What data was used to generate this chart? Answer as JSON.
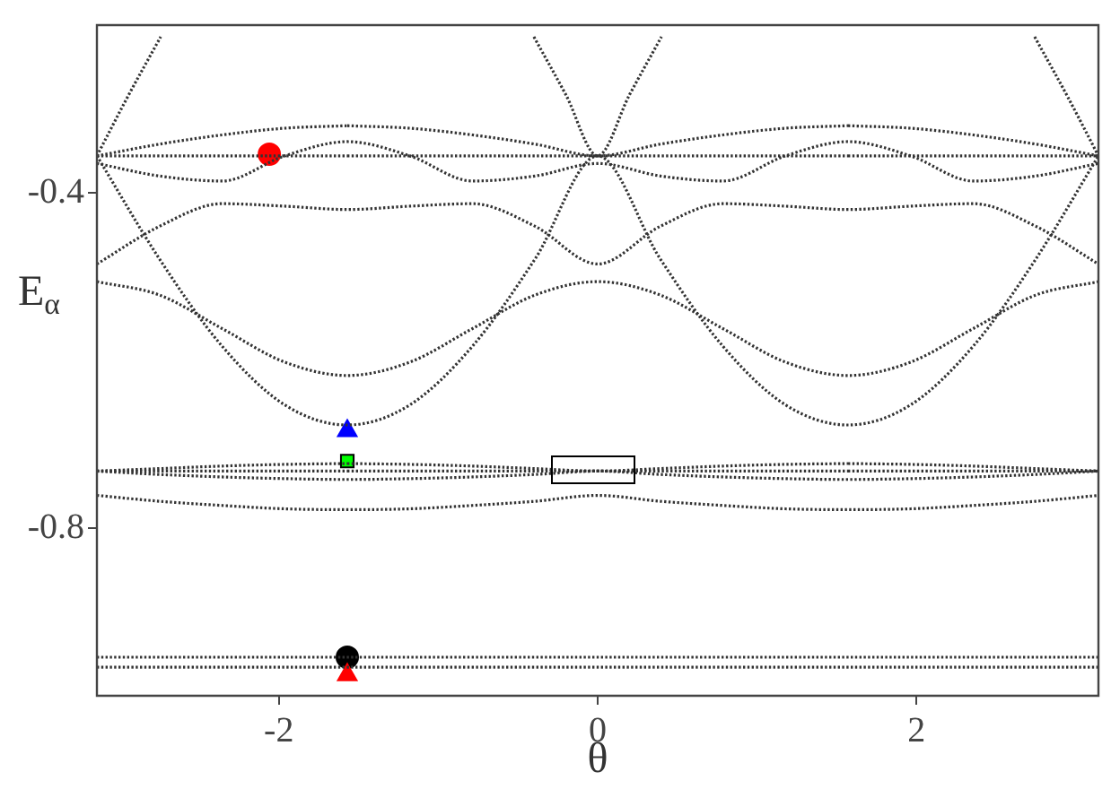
{
  "chart_data": {
    "type": "line",
    "xlabel": "θ",
    "ylabel": "E$_{α}$",
    "x": [
      -3.1416,
      -2.7489,
      -2.3562,
      -1.9635,
      -1.5708,
      -1.1781,
      -0.7854,
      -0.3927,
      0,
      0.3927,
      0.7854,
      1.1781,
      1.5708,
      1.9635,
      2.3562,
      2.7489,
      3.1416
    ],
    "xlim": [
      -3.1416,
      3.1416
    ],
    "xticks": [
      -2,
      0,
      2
    ],
    "ylim": [
      -1,
      -0.2
    ],
    "yticks": [
      -0.4,
      -0.8
    ],
    "grid": false,
    "legend": false,
    "line_style": "dotted",
    "marker": "none",
    "series": [
      {
        "color": "#333333",
        "x": [
          -3.1416,
          -2.7489,
          -2.3562,
          -1.9635,
          -1.5708
        ],
        "values": [
          -0.356,
          -0.356,
          -0.356,
          -0.356,
          -0.356
        ]
      },
      {
        "color": "#333333",
        "x": [
          -1.5708,
          -1.1781,
          -0.7854,
          -0.3927,
          0,
          0.3927,
          0.7854,
          1.1781,
          1.5708
        ],
        "values": [
          -0.356,
          -0.356,
          -0.356,
          -0.356,
          -0.356,
          -0.356,
          -0.356,
          -0.356,
          -0.356
        ]
      },
      {
        "color": "#333333",
        "x": [
          1.5708,
          1.9635,
          2.3562,
          2.7489,
          3.1416
        ],
        "values": [
          -0.356,
          -0.356,
          -0.356,
          -0.356,
          -0.356
        ]
      },
      {
        "color": "#333333",
        "x": [
          -3.1416,
          -2.7489,
          -2.3562,
          -1.9635,
          -1.5708
        ],
        "values": [
          -0.356,
          -0.342,
          -0.331,
          -0.323,
          -0.32
        ]
      },
      {
        "color": "#333333",
        "x": [
          -1.5708,
          -1.1781,
          -0.7854,
          -0.3927,
          0,
          0.3927,
          0.7854,
          1.1781,
          1.5708
        ],
        "values": [
          -0.32,
          -0.323,
          -0.331,
          -0.342,
          -0.356,
          -0.342,
          -0.331,
          -0.323,
          -0.32
        ]
      },
      {
        "color": "#333333",
        "x": [
          1.5708,
          1.9635,
          2.3562,
          2.7489,
          3.1416
        ],
        "values": [
          -0.32,
          -0.323,
          -0.331,
          -0.342,
          -0.356
        ]
      },
      {
        "color": "#333333",
        "values": [
          -0.365,
          -0.38,
          -0.386,
          -0.356,
          -0.339,
          -0.356,
          -0.386,
          -0.38,
          -0.365,
          -0.38,
          -0.386,
          -0.356,
          -0.339,
          -0.356,
          -0.386,
          -0.38,
          -0.365
        ]
      },
      {
        "color": "#333333",
        "values": [
          -0.485,
          -0.44,
          -0.413,
          -0.416,
          -0.42,
          -0.416,
          -0.413,
          -0.44,
          -0.485,
          -0.44,
          -0.413,
          -0.416,
          -0.42,
          -0.416,
          -0.413,
          -0.44,
          -0.485
        ]
      },
      {
        "color": "#333333",
        "values": [
          -0.506,
          -0.522,
          -0.562,
          -0.602,
          -0.618,
          -0.602,
          -0.562,
          -0.522,
          -0.506,
          -0.522,
          -0.562,
          -0.602,
          -0.618,
          -0.602,
          -0.562,
          -0.522,
          -0.506
        ]
      },
      {
        "color": "#333333",
        "values": [
          -0.356,
          -0.479,
          -0.583,
          -0.653,
          -0.677,
          -0.653,
          -0.583,
          -0.479,
          -0.356,
          -0.479,
          -0.583,
          -0.653,
          -0.677,
          -0.653,
          -0.583,
          -0.479,
          -0.356
        ]
      },
      {
        "color": "#333333",
        "x": [
          -3.1416,
          -2.95,
          -2.7416,
          -1.5708,
          -0.4,
          -0.2,
          0,
          0.2,
          0.4,
          1.5708,
          2.7416,
          2.95,
          3.1416
        ],
        "values": [
          -0.356,
          -0.286,
          -0.214,
          null,
          -0.214,
          -0.283,
          -0.356,
          -0.283,
          -0.214,
          null,
          -0.214,
          -0.286,
          -0.356
        ]
      },
      {
        "color": "#333333",
        "x": [
          -3.1416,
          -2.7489,
          -2.3562,
          -1.9635,
          -1.5708
        ],
        "values": [
          -0.732,
          -0.732,
          -0.732,
          -0.732,
          -0.732
        ]
      },
      {
        "color": "#333333",
        "x": [
          -1.5708,
          -1.1781,
          -0.7854,
          -0.3927,
          0,
          0.3927,
          0.7854,
          1.1781,
          1.5708
        ],
        "values": [
          -0.732,
          -0.732,
          -0.732,
          -0.732,
          -0.732,
          -0.732,
          -0.732,
          -0.732,
          -0.732
        ]
      },
      {
        "color": "#333333",
        "x": [
          1.5708,
          1.9635,
          2.3562,
          2.7489,
          3.1416
        ],
        "values": [
          -0.732,
          -0.732,
          -0.732,
          -0.732,
          -0.732
        ]
      },
      {
        "color": "#333333",
        "x": [
          -3.1416,
          -2.7489,
          -2.3562,
          -1.9635,
          -1.5708
        ],
        "values": [
          -0.732,
          -0.729,
          -0.726,
          -0.724,
          -0.723
        ]
      },
      {
        "color": "#333333",
        "x": [
          -1.5708,
          -1.1781,
          -0.7854,
          -0.3927,
          0,
          0.3927,
          0.7854,
          1.1781,
          1.5708
        ],
        "values": [
          -0.723,
          -0.724,
          -0.726,
          -0.729,
          -0.732,
          -0.729,
          -0.726,
          -0.724,
          -0.723
        ]
      },
      {
        "color": "#333333",
        "x": [
          1.5708,
          1.9635,
          2.3562,
          2.7489,
          3.1416
        ],
        "values": [
          -0.723,
          -0.724,
          -0.726,
          -0.729,
          -0.732
        ]
      },
      {
        "color": "#333333",
        "values": [
          -0.732,
          -0.736,
          -0.739,
          -0.741,
          -0.742,
          -0.741,
          -0.739,
          -0.736,
          -0.732,
          -0.736,
          -0.739,
          -0.741,
          -0.742,
          -0.741,
          -0.739,
          -0.736,
          -0.732
        ]
      },
      {
        "color": "#333333",
        "values": [
          -0.761,
          -0.768,
          -0.773,
          -0.777,
          -0.778,
          -0.777,
          -0.773,
          -0.768,
          -0.761,
          -0.768,
          -0.773,
          -0.777,
          -0.778,
          -0.777,
          -0.773,
          -0.768,
          -0.761
        ]
      },
      {
        "color": "#333333",
        "values": [
          -0.954,
          -0.954,
          -0.954,
          -0.954,
          -0.954,
          -0.954,
          -0.954,
          -0.954,
          -0.954,
          -0.954,
          -0.954,
          -0.954,
          -0.954,
          -0.954,
          -0.954,
          -0.954,
          -0.954
        ]
      },
      {
        "color": "#333333",
        "values": [
          -0.966,
          -0.966,
          -0.966,
          -0.966,
          -0.966,
          -0.966,
          -0.966,
          -0.966,
          -0.966,
          -0.966,
          -0.966,
          -0.966,
          -0.966,
          -0.966,
          -0.966,
          -0.966,
          -0.966
        ]
      },
      {
        "type": "scatter",
        "marker": "circle",
        "color": "#ff0000",
        "x": [
          -2.06
        ],
        "values": [
          -0.354
        ]
      },
      {
        "type": "scatter",
        "marker": "triangle",
        "color": "#0000ff",
        "x": [
          -1.5708
        ],
        "values": [
          -0.684
        ]
      },
      {
        "type": "scatter",
        "marker": "triangle",
        "color": "#ff0000",
        "x": [
          -1.5708
        ],
        "values": [
          -0.975
        ]
      },
      {
        "type": "scatter",
        "marker": "circle",
        "color": "#000000",
        "x": [
          -1.5708
        ],
        "values": [
          -0.954
        ]
      },
      {
        "type": "scatter",
        "marker": "square",
        "color": "#00ff00",
        "x": [
          -1.5708
        ],
        "values": [
          -0.72
        ]
      }
    ]
  }
}
